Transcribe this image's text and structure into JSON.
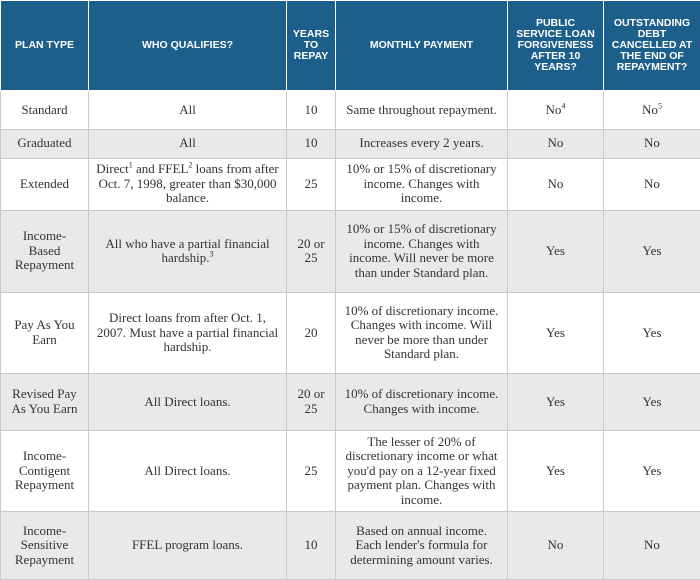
{
  "headers": {
    "plan_type": "PLAN TYPE",
    "who_qualifies": "WHO QUALIFIES?",
    "years_to_repay": "YEARS TO REPAY",
    "monthly_payment": "MONTHLY PAYMENT",
    "pslf": "PUBLIC SERVICE LOAN FORGIVENESS AFTER 10 YEARS?",
    "debt_cancelled": "OUTSTANDING DEBT CANCELLED AT THE END OF REPAYMENT?"
  },
  "rows": [
    {
      "plan": "Standard",
      "who": "All",
      "years": "10",
      "payment": "Same throughout repayment.",
      "pslf": "No",
      "pslf_note": "4",
      "cancel": "No",
      "cancel_note": "5"
    },
    {
      "plan": "Graduated",
      "who": "All",
      "years": "10",
      "payment": "Increases every 2 years.",
      "pslf": "No",
      "cancel": "No"
    },
    {
      "plan": "Extended",
      "who_part1": "Direct",
      "who_note1": "1",
      "who_part2": " and FFEL",
      "who_note2": "2",
      "who_part3": " loans from after Oct. 7, 1998, greater than $30,000 balance.",
      "years": "25",
      "payment": "10% or 15% of discretionary income. Changes with income.",
      "pslf": "No",
      "cancel": "No"
    },
    {
      "plan": "Income-Based Repayment",
      "who": "All who have a partial financial hardship.",
      "who_note": "3",
      "years": "20 or 25",
      "payment": "10% or 15% of discretionary income. Changes with income. Will never be more than under Standard plan.",
      "pslf": "Yes",
      "cancel": "Yes"
    },
    {
      "plan": "Pay As You Earn",
      "who": "Direct loans from after Oct. 1, 2007. Must have a partial financial hardship.",
      "years": "20",
      "payment": "10% of discretionary income. Changes with income. Will never be more than under Standard plan.",
      "pslf": "Yes",
      "cancel": "Yes"
    },
    {
      "plan": "Revised Pay As You Earn",
      "who": "All Direct loans.",
      "years": "20 or 25",
      "payment": "10% of discretionary income. Changes with income.",
      "pslf": "Yes",
      "cancel": "Yes"
    },
    {
      "plan": "Income-Contigent Repayment",
      "who": "All Direct loans.",
      "years": "25",
      "payment": "The lesser of 20% of discretionary income or what you'd pay on a 12-year fixed payment plan. Changes with income.",
      "pslf": "Yes",
      "cancel": "Yes"
    },
    {
      "plan": "Income-Sensitive Repayment",
      "who": "FFEL program loans.",
      "years": "10",
      "payment": "Based on annual income. Each lender's formula for determining amount varies.",
      "pslf": "No",
      "cancel": "No"
    }
  ]
}
